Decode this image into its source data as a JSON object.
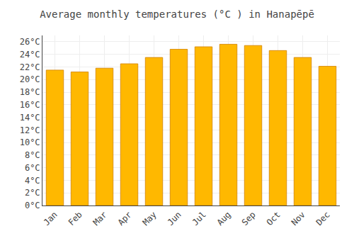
{
  "chart_data": {
    "type": "bar",
    "title": "Average monthly temperatures (°C ) in Hanapēpē",
    "categories": [
      "Jan",
      "Feb",
      "Mar",
      "Apr",
      "May",
      "Jun",
      "Jul",
      "Aug",
      "Sep",
      "Oct",
      "Nov",
      "Dec"
    ],
    "values": [
      21.5,
      21.2,
      21.8,
      22.5,
      23.5,
      24.8,
      25.2,
      25.6,
      25.4,
      24.6,
      23.5,
      22.1
    ],
    "color": "#FFB800",
    "ylim": [
      0,
      27
    ],
    "yticks": [
      {
        "value": 0,
        "label": "0°C"
      },
      {
        "value": 2,
        "label": "2°C"
      },
      {
        "value": 4,
        "label": "4°C"
      },
      {
        "value": 6,
        "label": "6°C"
      },
      {
        "value": 8,
        "label": "8°C"
      },
      {
        "value": 10,
        "label": "10°C"
      },
      {
        "value": 12,
        "label": "12°C"
      },
      {
        "value": 14,
        "label": "14°C"
      },
      {
        "value": 16,
        "label": "16°C"
      },
      {
        "value": 18,
        "label": "18°C"
      },
      {
        "value": 20,
        "label": "20°C"
      },
      {
        "value": 22,
        "label": "22°C"
      },
      {
        "value": 24,
        "label": "24°C"
      },
      {
        "value": 26,
        "label": "26°C"
      }
    ],
    "grid": true
  }
}
